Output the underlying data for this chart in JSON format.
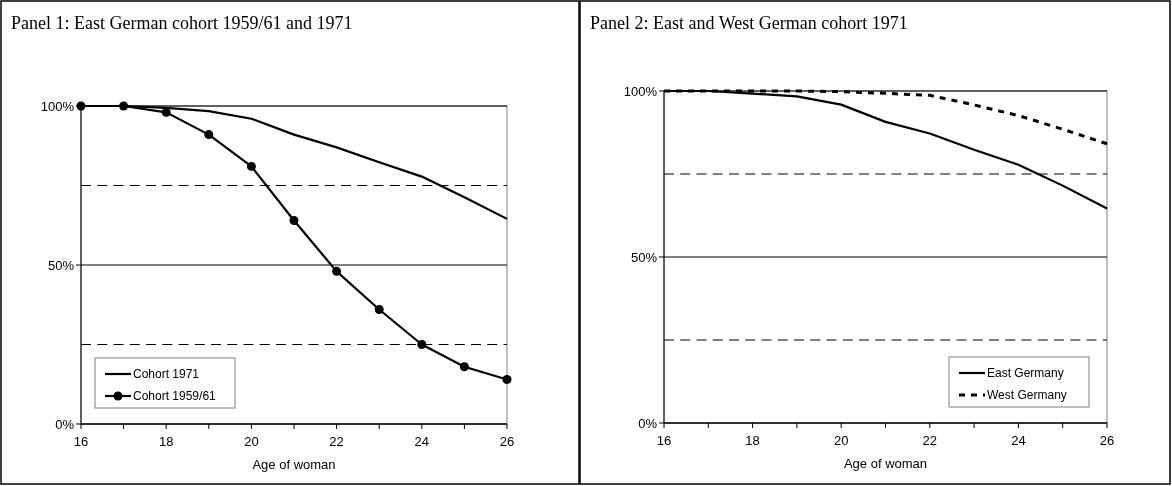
{
  "chart_data": [
    {
      "type": "line",
      "title": "Panel 1: East German cohort 1959/61 and 1971",
      "xlabel": "Age of woman",
      "xlim": [
        16,
        26
      ],
      "xticks": [
        16,
        {
          "value": 17,
          "label": null
        },
        18,
        {
          "value": 19,
          "label": null
        },
        20,
        {
          "value": 21,
          "label": null
        },
        22,
        {
          "value": 23,
          "label": null
        },
        24,
        {
          "value": 25,
          "label": null
        },
        26
      ],
      "ylim": [
        0,
        100
      ],
      "yticks": [
        {
          "value": 0,
          "label": "0%"
        },
        {
          "value": 50,
          "label": "50%"
        },
        {
          "value": 100,
          "label": "100%"
        }
      ],
      "grid": "y",
      "legend": "bottom left",
      "ref_lines": [
        {
          "axis": "y",
          "value": 25,
          "color": "#000000",
          "line_style": "dashed"
        },
        {
          "axis": "y",
          "value": 75,
          "color": "#000000",
          "line_style": "dashed"
        }
      ],
      "x": [
        16,
        17,
        18,
        19,
        20,
        21,
        22,
        23,
        24,
        25,
        26
      ],
      "series": [
        {
          "name": "Cohort 1971",
          "color": "#000000",
          "marker": "none",
          "line_style": "solid",
          "values": [
            100,
            100,
            99.4,
            98.4,
            96,
            91,
            87,
            82.3,
            77.8,
            71.3,
            64.5
          ]
        },
        {
          "name": "Cohort 1959/61",
          "color": "#000000",
          "marker": "circle",
          "line_style": "solid",
          "values": [
            100,
            100,
            98,
            91,
            81,
            64,
            48,
            36,
            25,
            18,
            14
          ]
        }
      ]
    },
    {
      "type": "line",
      "title": "Panel 2: East and West German cohort 1971",
      "xlabel": "Age of woman",
      "xlim": [
        16,
        26
      ],
      "xticks": [
        16,
        {
          "value": 17,
          "label": null
        },
        18,
        {
          "value": 19,
          "label": null
        },
        20,
        {
          "value": 21,
          "label": null
        },
        22,
        {
          "value": 23,
          "label": null
        },
        24,
        {
          "value": 25,
          "label": null
        },
        26
      ],
      "ylim": [
        0,
        100
      ],
      "yticks": [
        {
          "value": 0,
          "label": "0%"
        },
        {
          "value": 50,
          "label": "50%"
        },
        {
          "value": 100,
          "label": "100%"
        }
      ],
      "grid": "y",
      "legend": "bottom right",
      "ref_lines": [
        {
          "axis": "y",
          "value": 25,
          "color": "#000000",
          "line_style": "dashed"
        },
        {
          "axis": "y",
          "value": 75,
          "color": "#000000",
          "line_style": "dashed"
        }
      ],
      "x": [
        16,
        17,
        18,
        19,
        20,
        21,
        22,
        23,
        24,
        25,
        26
      ],
      "series": [
        {
          "name": "East Germany",
          "color": "#000000",
          "marker": "none",
          "line_style": "solid",
          "values": [
            100,
            100,
            99.2,
            98.4,
            95.9,
            90.7,
            87.2,
            82.3,
            77.8,
            71.5,
            64.6
          ]
        },
        {
          "name": "West Germany",
          "color": "#000000",
          "marker": "none",
          "line_style": "dotted",
          "values": [
            100,
            100,
            100,
            100,
            99.8,
            99.3,
            98.7,
            95.8,
            92.6,
            88.5,
            84.1
          ]
        }
      ]
    }
  ]
}
